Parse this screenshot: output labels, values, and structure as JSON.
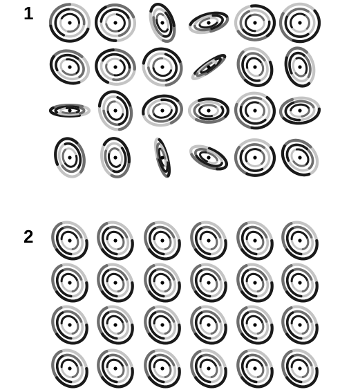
{
  "panels": [
    {
      "label": "1",
      "rows": [
        [
          {
            "aspect": 0.95,
            "rot": 0,
            "phase": 20
          },
          {
            "aspect": 0.92,
            "rot": 10,
            "phase": 80
          },
          {
            "aspect": 0.55,
            "rot": 70,
            "phase": 140
          },
          {
            "aspect": 0.45,
            "rot": -15,
            "phase": 200
          },
          {
            "aspect": 0.88,
            "rot": 0,
            "phase": 260
          },
          {
            "aspect": 0.97,
            "rot": 0,
            "phase": 320
          }
        ],
        [
          {
            "aspect": 0.8,
            "rot": 25,
            "phase": 40
          },
          {
            "aspect": 0.88,
            "rot": 15,
            "phase": 100
          },
          {
            "aspect": 0.92,
            "rot": 30,
            "phase": 160
          },
          {
            "aspect": 0.22,
            "rot": -35,
            "phase": 220
          },
          {
            "aspect": 0.82,
            "rot": 60,
            "phase": 280
          },
          {
            "aspect": 0.7,
            "rot": 75,
            "phase": 340
          }
        ],
        [
          {
            "aspect": 0.28,
            "rot": 0,
            "phase": 60
          },
          {
            "aspect": 0.8,
            "rot": 70,
            "phase": 120
          },
          {
            "aspect": 0.75,
            "rot": -10,
            "phase": 180
          },
          {
            "aspect": 0.6,
            "rot": 0,
            "phase": 240
          },
          {
            "aspect": 0.9,
            "rot": 10,
            "phase": 300
          },
          {
            "aspect": 0.65,
            "rot": -5,
            "phase": 0
          }
        ],
        [
          {
            "aspect": 0.72,
            "rot": 75,
            "phase": 80
          },
          {
            "aspect": 0.7,
            "rot": 80,
            "phase": 140
          },
          {
            "aspect": 0.25,
            "rot": 75,
            "phase": 200
          },
          {
            "aspect": 0.45,
            "rot": 25,
            "phase": 260
          },
          {
            "aspect": 0.92,
            "rot": 5,
            "phase": 320
          },
          {
            "aspect": 0.78,
            "rot": 45,
            "phase": 20
          }
        ]
      ]
    },
    {
      "label": "2",
      "rows": [
        [
          {
            "aspect": 0.82,
            "rot": 55,
            "phase": 300
          },
          {
            "aspect": 0.82,
            "rot": 55,
            "phase": 300
          },
          {
            "aspect": 0.82,
            "rot": 55,
            "phase": 300
          },
          {
            "aspect": 0.82,
            "rot": 55,
            "phase": 300
          },
          {
            "aspect": 0.82,
            "rot": 55,
            "phase": 300
          },
          {
            "aspect": 0.82,
            "rot": 55,
            "phase": 300
          }
        ],
        [
          {
            "aspect": 0.82,
            "rot": 55,
            "phase": 300
          },
          {
            "aspect": 0.82,
            "rot": 55,
            "phase": 300
          },
          {
            "aspect": 0.82,
            "rot": 55,
            "phase": 300
          },
          {
            "aspect": 0.82,
            "rot": 55,
            "phase": 300
          },
          {
            "aspect": 0.82,
            "rot": 55,
            "phase": 300
          },
          {
            "aspect": 0.82,
            "rot": 55,
            "phase": 300
          }
        ],
        [
          {
            "aspect": 0.82,
            "rot": 55,
            "phase": 300
          },
          {
            "aspect": 0.82,
            "rot": 55,
            "phase": 300
          },
          {
            "aspect": 0.82,
            "rot": 55,
            "phase": 300
          },
          {
            "aspect": 0.82,
            "rot": 55,
            "phase": 300
          },
          {
            "aspect": 0.82,
            "rot": 55,
            "phase": 300
          },
          {
            "aspect": 0.82,
            "rot": 55,
            "phase": 300
          }
        ],
        [
          {
            "aspect": 0.82,
            "rot": 55,
            "phase": 300
          },
          {
            "aspect": 0.82,
            "rot": 55,
            "phase": 300
          },
          {
            "aspect": 0.82,
            "rot": 55,
            "phase": 300
          },
          {
            "aspect": 0.82,
            "rot": 55,
            "phase": 300
          },
          {
            "aspect": 0.82,
            "rot": 55,
            "phase": 300
          },
          {
            "aspect": 0.82,
            "rot": 55,
            "phase": 300
          }
        ]
      ]
    }
  ],
  "colors": {
    "background": "#ffffff",
    "ring_dark": "#1a1a1a",
    "ring_mid": "#6e6e6e",
    "ring_light": "#c4c4c4",
    "center_dot": "#000000"
  }
}
